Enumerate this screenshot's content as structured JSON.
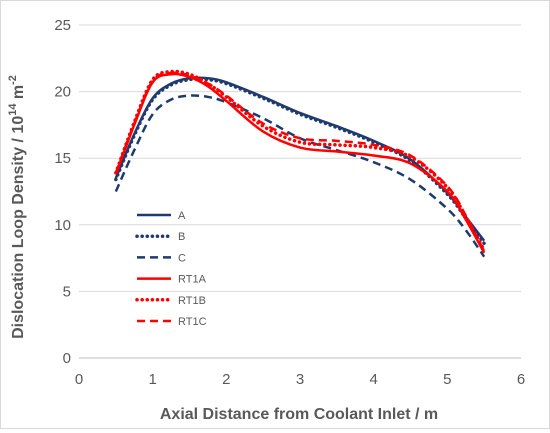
{
  "chart_data": {
    "type": "line",
    "title": "",
    "xlabel": "Axial Distance from Coolant Inlet / m",
    "ylabel_main": "Dislocation Loop Density / 10",
    "ylabel_exp1": "14",
    "ylabel_mid": " m",
    "ylabel_exp2": "-2",
    "xlim": [
      0,
      6
    ],
    "ylim": [
      0,
      25
    ],
    "xticks": [
      0,
      1,
      2,
      3,
      4,
      5,
      6
    ],
    "yticks": [
      0,
      5,
      10,
      15,
      20,
      25
    ],
    "grid": "horizontal",
    "legend_position": "left-center",
    "series": [
      {
        "name": "A",
        "color": "#1f3a6e",
        "style": "solid",
        "x": [
          0.5,
          0.75,
          1.0,
          1.25,
          1.5,
          1.75,
          2.0,
          2.5,
          3.0,
          3.5,
          4.0,
          4.5,
          5.0,
          5.25,
          5.5
        ],
        "y": [
          13.5,
          16.8,
          19.5,
          20.6,
          21.0,
          21.0,
          20.7,
          19.6,
          18.4,
          17.4,
          16.3,
          14.9,
          12.4,
          10.6,
          8.8
        ]
      },
      {
        "name": "B",
        "color": "#1f3a6e",
        "style": "dotted",
        "x": [
          0.5,
          0.75,
          1.0,
          1.25,
          1.5,
          1.75,
          2.0,
          2.5,
          3.0,
          3.5,
          4.0,
          4.5,
          5.0,
          5.25,
          5.5
        ],
        "y": [
          13.4,
          16.7,
          19.4,
          20.5,
          20.9,
          20.9,
          20.6,
          19.5,
          18.3,
          17.3,
          16.2,
          14.8,
          12.3,
          10.5,
          8.6
        ]
      },
      {
        "name": "C",
        "color": "#1f3a6e",
        "style": "dashed",
        "x": [
          0.5,
          0.75,
          1.0,
          1.25,
          1.5,
          1.75,
          2.0,
          2.5,
          3.0,
          3.5,
          4.0,
          4.5,
          5.0,
          5.25,
          5.5
        ],
        "y": [
          12.5,
          15.6,
          18.3,
          19.4,
          19.7,
          19.6,
          19.2,
          18.0,
          16.5,
          15.6,
          14.7,
          13.4,
          11.2,
          9.6,
          7.6
        ]
      },
      {
        "name": "RT1A",
        "color": "#ff0000",
        "style": "solid",
        "x": [
          0.5,
          0.75,
          1.0,
          1.25,
          1.5,
          1.75,
          2.0,
          2.5,
          3.0,
          3.5,
          4.0,
          4.5,
          5.0,
          5.25,
          5.5
        ],
        "y": [
          13.8,
          17.5,
          20.7,
          21.3,
          21.1,
          20.4,
          19.3,
          17.0,
          15.8,
          15.5,
          15.2,
          14.6,
          12.5,
          10.4,
          7.9
        ]
      },
      {
        "name": "RT1B",
        "color": "#ff0000",
        "style": "dotted",
        "x": [
          0.5,
          0.75,
          1.0,
          1.25,
          1.5,
          1.75,
          2.0,
          2.5,
          3.0,
          3.5,
          4.0,
          4.5,
          5.0,
          5.25,
          5.5
        ],
        "y": [
          13.9,
          17.7,
          20.9,
          21.5,
          21.3,
          20.6,
          19.6,
          17.4,
          16.2,
          16.0,
          15.8,
          15.1,
          12.8,
          10.6,
          8.1
        ]
      },
      {
        "name": "RT1C",
        "color": "#ff0000",
        "style": "dashed",
        "x": [
          0.5,
          0.75,
          1.0,
          1.25,
          1.5,
          1.75,
          2.0,
          2.5,
          3.0,
          3.5,
          4.0,
          4.5,
          5.0,
          5.25,
          5.5
        ],
        "y": [
          13.9,
          17.6,
          20.8,
          21.4,
          21.2,
          20.6,
          19.7,
          17.6,
          16.5,
          16.3,
          16.0,
          15.2,
          12.9,
          10.7,
          8.0
        ]
      }
    ]
  }
}
